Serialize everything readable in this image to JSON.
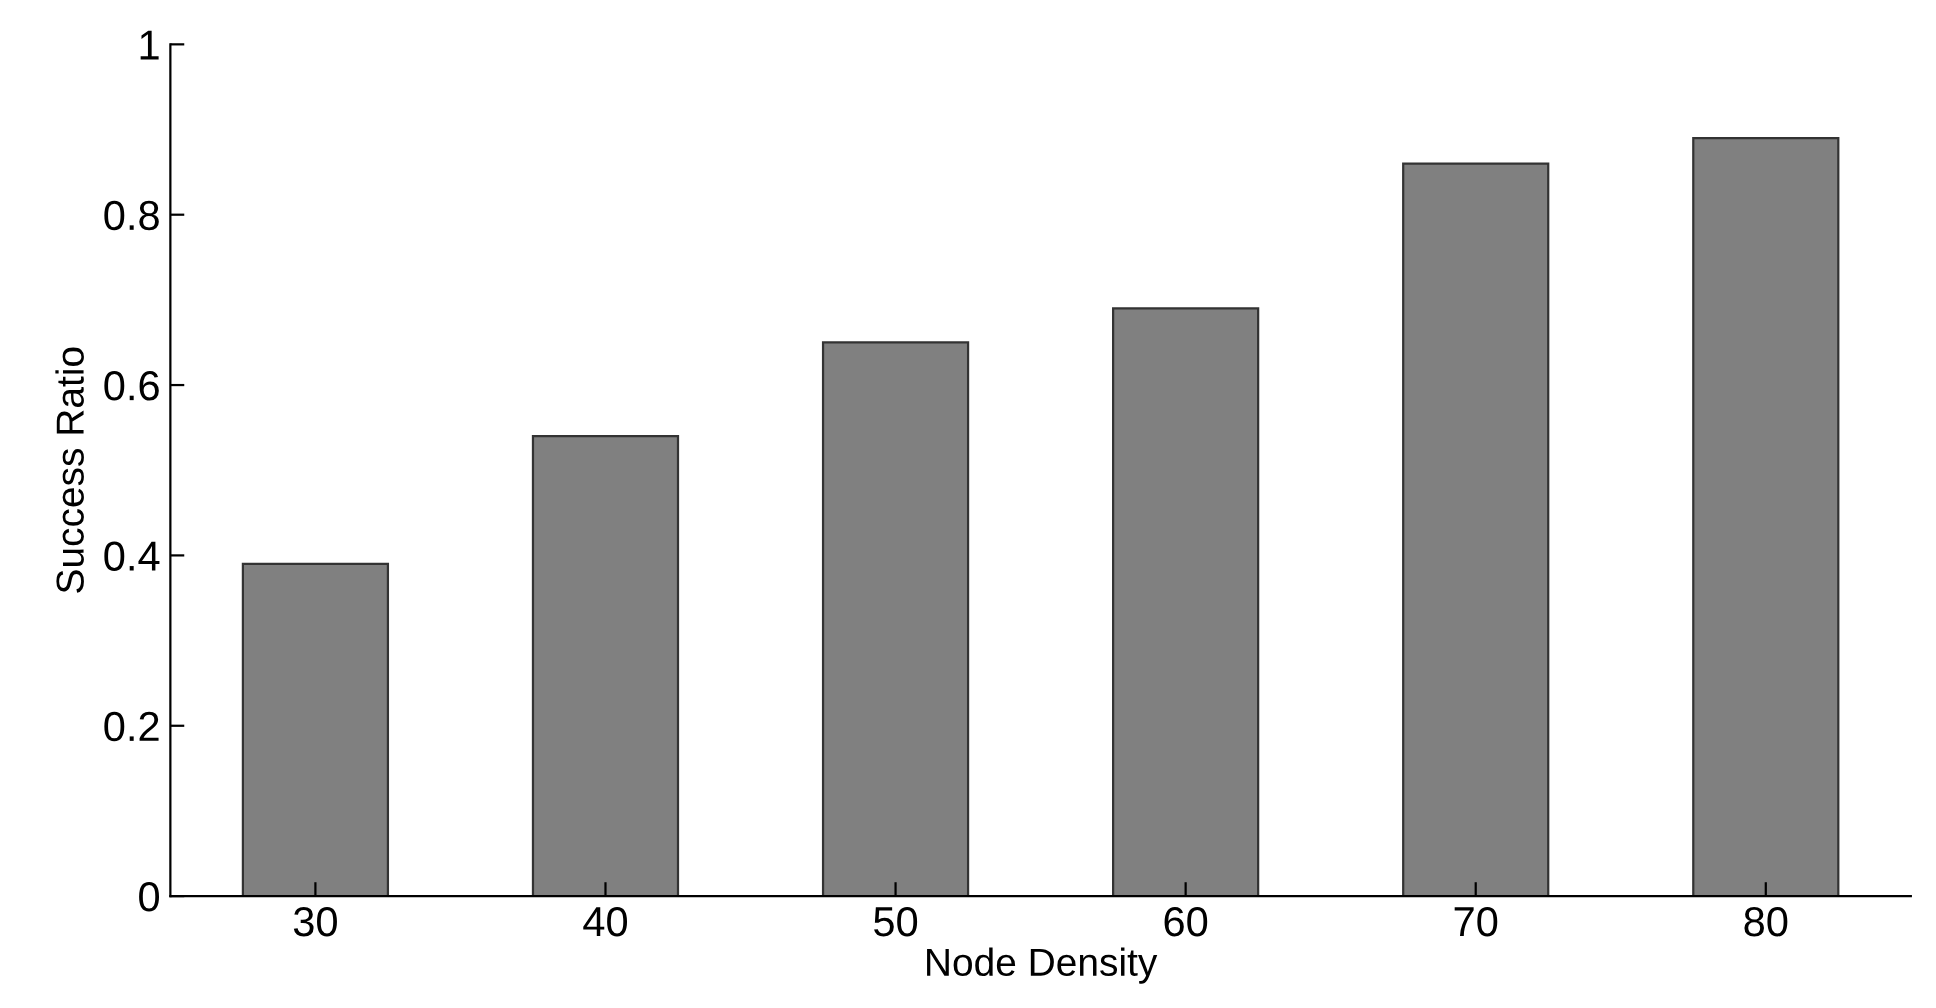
{
  "chart_data": {
    "type": "bar",
    "xlabel": "Node Density",
    "ylabel": "Success Ratio",
    "categories": [
      "30",
      "40",
      "50",
      "60",
      "70",
      "80"
    ],
    "values": [
      0.39,
      0.54,
      0.65,
      0.69,
      0.86,
      0.89
    ],
    "color": "#808080",
    "ylim": [
      0,
      1
    ],
    "yticks": [
      0,
      0.2,
      0.4,
      0.6,
      0.8,
      1
    ],
    "grid": false
  }
}
